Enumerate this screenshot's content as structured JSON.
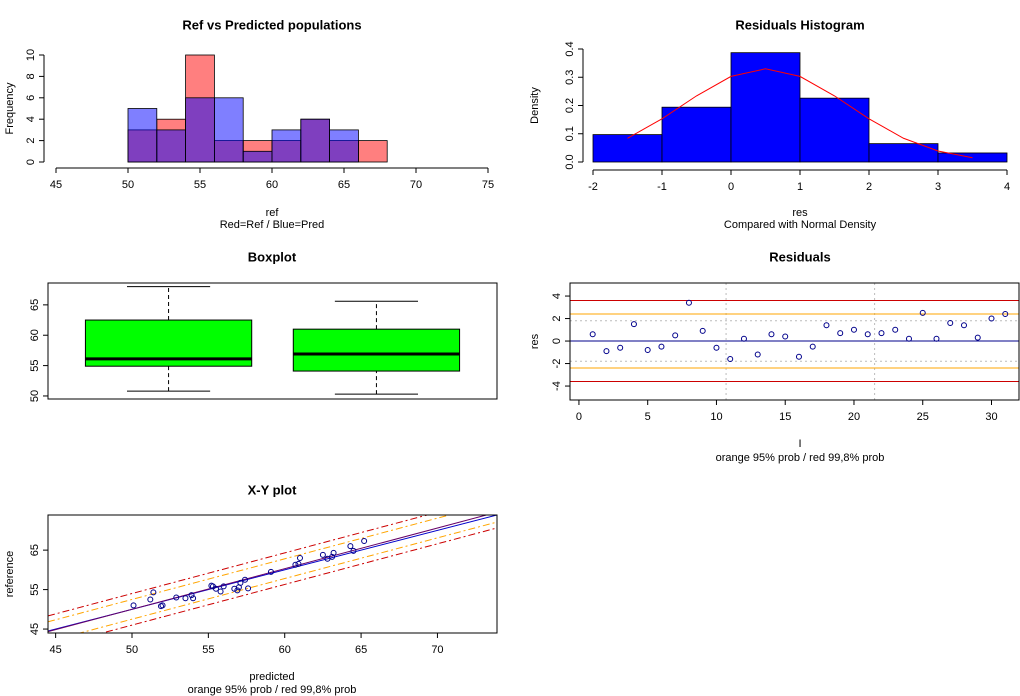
{
  "chart_data": [
    {
      "type": "histogram",
      "title": "Ref vs Predicted populations",
      "x_label": "ref",
      "subtitle": "Red=Ref / Blue=Pred",
      "y_label": "Frequency",
      "bins": [
        50,
        52,
        54,
        56,
        58,
        60,
        62,
        64,
        66,
        68
      ],
      "series": [
        {
          "color": "rgba(255,0,0,0.5)",
          "values": [
            3,
            4,
            10,
            2,
            2,
            2,
            4,
            2,
            2
          ]
        },
        {
          "color": "rgba(0,0,255,0.5)",
          "values": [
            5,
            3,
            6,
            6,
            1,
            3,
            4,
            3,
            0
          ]
        }
      ],
      "xlim": [
        45,
        75
      ],
      "xticks": [
        45,
        50,
        55,
        60,
        65,
        70,
        75
      ],
      "ylim": [
        0,
        10
      ],
      "yticks": [
        0,
        2,
        4,
        6,
        8,
        10
      ]
    },
    {
      "type": "histogram",
      "title": "Residuals Histogram",
      "x_label": "res",
      "subtitle": "Compared with Normal Density",
      "y_label": "Density",
      "bins": [
        -2,
        -1,
        0,
        1,
        2,
        3,
        4
      ],
      "values": [
        0.097,
        0.194,
        0.387,
        0.226,
        0.065,
        0.032
      ],
      "color": "#0000ff",
      "curve": {
        "color": "#ff0000",
        "x": [
          -1.5,
          -1,
          -0.5,
          0,
          0.5,
          1,
          1.5,
          2,
          2.5,
          3,
          3.5
        ],
        "values": [
          0.084,
          0.153,
          0.234,
          0.303,
          0.33,
          0.303,
          0.234,
          0.153,
          0.084,
          0.039,
          0.015
        ]
      },
      "xlim": [
        -2,
        4
      ],
      "xticks": [
        -2,
        -1,
        0,
        1,
        2,
        3,
        4
      ],
      "ylim": [
        0,
        0.4
      ],
      "yticks": [
        {
          "value": 0,
          "label": "0.0"
        },
        0.1,
        0.2,
        0.3,
        0.4
      ]
    },
    {
      "type": "box",
      "title": "Boxplot",
      "boxes": [
        {
          "whisker_low": 50.8,
          "q1": 54.9,
          "median": 56.1,
          "q3": 62.5,
          "whisker_high": 68.0,
          "color": "#00ff00"
        },
        {
          "whisker_low": 50.3,
          "q1": 54.1,
          "median": 56.9,
          "q3": 61.0,
          "whisker_high": 65.6,
          "color": "#00ff00"
        }
      ],
      "ylim": [
        49.5,
        68.6
      ],
      "yticks": [
        50,
        55,
        60,
        65
      ]
    },
    {
      "type": "scatter",
      "title": "Residuals",
      "x_label": "I",
      "subtitle": "orange 95% prob / red 99,8% prob",
      "y_label": "res",
      "x": [
        1,
        2,
        3,
        4,
        5,
        6,
        7,
        8,
        9,
        10,
        11,
        12,
        13,
        14,
        15,
        16,
        17,
        18,
        19,
        20,
        21,
        22,
        23,
        24,
        25,
        26,
        27,
        28,
        29,
        30,
        31
      ],
      "values": [
        0.6,
        -0.9,
        -0.6,
        1.5,
        -0.8,
        -0.5,
        0.5,
        3.4,
        0.9,
        -0.6,
        -1.6,
        0.2,
        -1.2,
        0.6,
        0.4,
        -1.4,
        -0.5,
        1.4,
        0.7,
        1.0,
        0.6,
        0.7,
        1.0,
        0.2,
        2.5,
        0.2,
        1.6,
        1.4,
        0.3,
        2.0,
        2.4
      ],
      "color": "#00008b",
      "hlines": [
        {
          "value": 3.6,
          "color": "#cc0000"
        },
        {
          "value": -3.6,
          "color": "#cc0000"
        },
        {
          "value": 2.4,
          "color": "#ffa500"
        },
        {
          "value": -2.4,
          "color": "#ffa500"
        },
        {
          "value": 0,
          "color": "#00008b"
        },
        {
          "value": 1.8,
          "color": "#bbbbbb",
          "dash": true
        },
        {
          "value": -1.8,
          "color": "#bbbbbb",
          "dash": true
        }
      ],
      "vlines": [
        {
          "value": 10.7,
          "color": "#bbbbbb",
          "dash": true
        },
        {
          "value": 21.5,
          "color": "#bbbbbb",
          "dash": true
        }
      ],
      "xlim": [
        -0.65,
        32
      ],
      "xticks": [
        0,
        5,
        10,
        15,
        20,
        25,
        30
      ],
      "ylim": [
        -5.24,
        5.16
      ],
      "yticks": [
        -4,
        -2,
        0,
        2,
        4
      ]
    },
    {
      "type": "scatter",
      "title": "X-Y plot",
      "x_label": "predicted",
      "subtitle": "orange 95% prob / red 99,8% prob",
      "y_label": "reference",
      "x": [
        50.1,
        51.2,
        51.4,
        51.9,
        52.0,
        52.9,
        53.5,
        53.9,
        54.0,
        55.3,
        55.5,
        55.8,
        56.7,
        56.9,
        57.1,
        57.4,
        57.6,
        59.1,
        60.7,
        60.9,
        61.0,
        62.5,
        62.8,
        63.1,
        63.2,
        64.3,
        64.5,
        65.2,
        55.2,
        56.0,
        57.0
      ],
      "values": [
        51.0,
        52.5,
        54.3,
        50.8,
        51.0,
        53.0,
        52.8,
        53.6,
        52.8,
        55.8,
        55.2,
        54.5,
        55.2,
        54.8,
        56.7,
        57.5,
        55.3,
        59.5,
        61.3,
        61.5,
        63.0,
        63.8,
        62.8,
        63.3,
        64.3,
        66.0,
        64.8,
        67.3,
        56.0,
        55.8,
        55.6
      ],
      "color": "#00008b",
      "lines": [
        {
          "intercept": 0,
          "slope": 1,
          "color": "#0000cc"
        },
        {
          "intercept": -1.5,
          "slope": 1.03,
          "color": "#660066"
        },
        {
          "intercept": 1,
          "slope": 1.03,
          "color": "#ffa500",
          "dash": true
        },
        {
          "intercept": -4,
          "slope": 1.03,
          "color": "#ffa500",
          "dash": true
        },
        {
          "intercept": 2.5,
          "slope": 1.03,
          "color": "#cc0000",
          "dash": true
        },
        {
          "intercept": -5.5,
          "slope": 1.03,
          "color": "#cc0000",
          "dash": true
        }
      ],
      "xlim": [
        44.5,
        73.9
      ],
      "xticks": [
        45,
        50,
        55,
        60,
        65,
        70
      ],
      "ylim": [
        44,
        73.9
      ],
      "yticks": [
        45,
        55,
        65
      ]
    }
  ]
}
